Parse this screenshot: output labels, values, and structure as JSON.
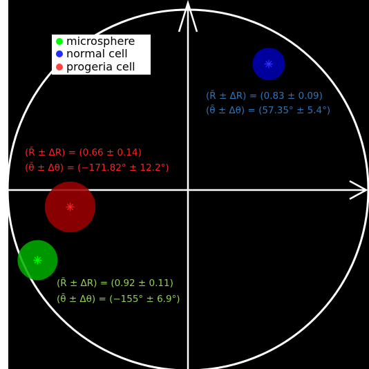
{
  "chart_data": {
    "type": "scatter",
    "coordinate_system": "polar",
    "grid": false,
    "legend_position": "top-left",
    "series": [
      {
        "name": "microsphere",
        "color": "#00ff00",
        "r": 0.92,
        "r_err": 0.11,
        "theta_deg": -155,
        "theta_err_deg": 6.9,
        "label_line1": "(R̄ ± ΔR) = (0.92 ± 0.11)",
        "label_line2": "(θ̄ ± Δθ) = (−155° ± 6.9°)",
        "label_color": "#92d050"
      },
      {
        "name": "normal cell",
        "color": "#2a2aff",
        "r": 0.83,
        "r_err": 0.09,
        "theta_deg": 57.35,
        "theta_err_deg": 5.4,
        "label_line1": "(R̄ ± ΔR) = (0.83 ± 0.09)",
        "label_line2": "(θ̄ ± Δθ) = (57.35° ± 5.4°)",
        "label_color": "#2e75b6"
      },
      {
        "name": "progeria cell",
        "color": "#ff4444",
        "r": 0.66,
        "r_err": 0.14,
        "theta_deg": -171.82,
        "theta_err_deg": 12.2,
        "label_line1": "(R̄ ± ΔR) = (0.66 ± 0.14)",
        "label_line2": "(θ̄ ± Δθ) = (−171.82° ± 12.2°)",
        "label_color": "#ff2020"
      }
    ]
  }
}
